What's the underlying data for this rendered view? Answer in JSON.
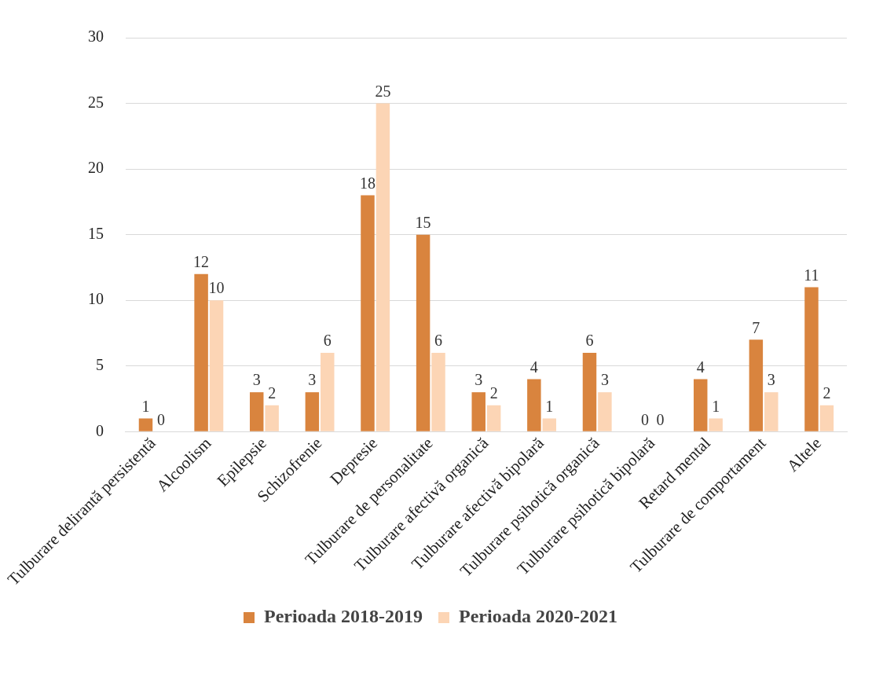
{
  "chart_data": {
    "type": "bar",
    "categories": [
      "Tulburare delirantă persistentă",
      "Alcoolism",
      "Epilepsie",
      "Schizofrenie",
      "Depresie",
      "Tulburare de personalitate",
      "Tulburare afectivă organică",
      "Tulburare afectivă bipolară",
      "Tulburare psihotică organică",
      "Tulburare psihotică bipolară",
      "Retard mental",
      "Tulburare de comportament",
      "Altele"
    ],
    "series": [
      {
        "name": "Perioada 2018-2019",
        "color": "#d9843e",
        "values": [
          1,
          12,
          3,
          3,
          18,
          15,
          3,
          4,
          6,
          0,
          4,
          7,
          11
        ]
      },
      {
        "name": "Perioada 2020-2021",
        "color": "#fcd5b5",
        "values": [
          0,
          10,
          2,
          6,
          25,
          6,
          2,
          1,
          3,
          0,
          1,
          3,
          2
        ]
      }
    ],
    "ylim": [
      0,
      30
    ],
    "yticks": [
      0,
      5,
      10,
      15,
      20,
      25,
      30
    ],
    "grid": "y",
    "legend": "bottom",
    "data_labels": true
  }
}
